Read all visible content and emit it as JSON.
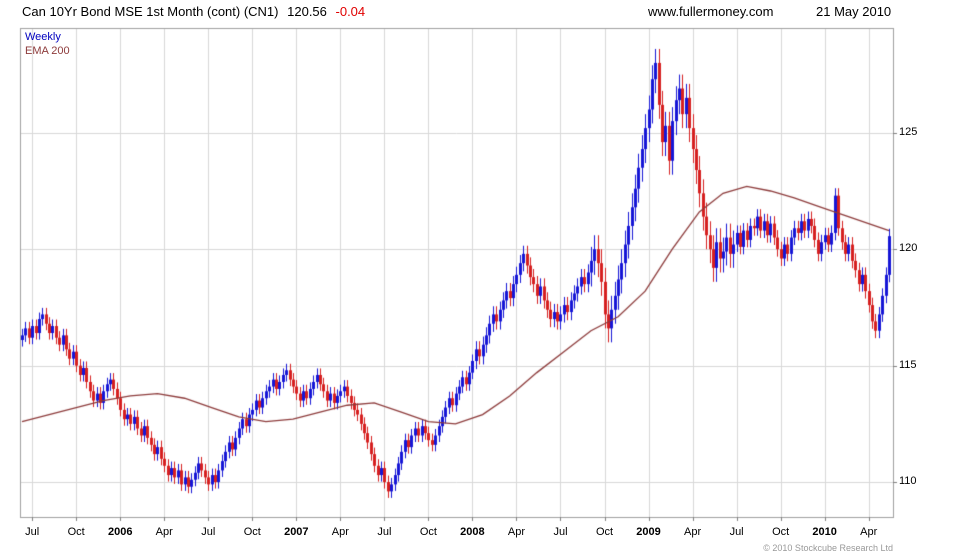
{
  "header": {
    "title": "Can 10Yr Bond MSE 1st Month (cont) (CN1)",
    "last_price": "120.56",
    "change": "-0.04",
    "website": "www.fullermoney.com",
    "date": "21 May 2010"
  },
  "legend": {
    "timeframe": "Weekly",
    "overlay": "EMA 200"
  },
  "footer": {
    "copyright": "© 2010 Stockcube Research Ltd"
  },
  "chart_data": {
    "type": "candlestick",
    "title": "Can 10Yr Bond MSE 1st Month (cont) (CN1)",
    "timeframe": "weekly",
    "legend_entries": [
      "Weekly",
      "EMA 200"
    ],
    "legend_position": "top-left",
    "grid": true,
    "ylim": [
      108.5,
      129.5
    ],
    "y_ticks": [
      110,
      115,
      120,
      125
    ],
    "x_ticks": [
      {
        "week": 3,
        "label": "Jul"
      },
      {
        "week": 16,
        "label": "Oct"
      },
      {
        "week": 29,
        "label": "2006"
      },
      {
        "week": 42,
        "label": "Apr"
      },
      {
        "week": 55,
        "label": "Jul"
      },
      {
        "week": 68,
        "label": "Oct"
      },
      {
        "week": 81,
        "label": "2007"
      },
      {
        "week": 94,
        "label": "Apr"
      },
      {
        "week": 107,
        "label": "Jul"
      },
      {
        "week": 120,
        "label": "Oct"
      },
      {
        "week": 133,
        "label": "2008"
      },
      {
        "week": 146,
        "label": "Apr"
      },
      {
        "week": 159,
        "label": "Jul"
      },
      {
        "week": 172,
        "label": "Oct"
      },
      {
        "week": 185,
        "label": "2009"
      },
      {
        "week": 198,
        "label": "Apr"
      },
      {
        "week": 211,
        "label": "Jul"
      },
      {
        "week": 224,
        "label": "Oct"
      },
      {
        "week": 237,
        "label": "2010"
      },
      {
        "week": 250,
        "label": "Apr"
      }
    ],
    "first_open": 116.1,
    "last_price": 120.56,
    "last_change": -0.04,
    "weekly_closes": [
      116.3,
      116.6,
      116.2,
      116.7,
      116.4,
      117.0,
      117.2,
      116.8,
      116.4,
      116.7,
      116.2,
      115.9,
      116.3,
      115.7,
      115.3,
      115.6,
      115.0,
      114.6,
      114.9,
      114.3,
      113.9,
      113.5,
      113.8,
      113.4,
      113.9,
      114.2,
      114.4,
      114.0,
      113.6,
      113.1,
      112.7,
      112.9,
      112.5,
      112.8,
      112.3,
      112.0,
      112.4,
      111.9,
      111.6,
      111.2,
      111.5,
      111.0,
      110.7,
      110.3,
      110.6,
      110.2,
      110.5,
      109.9,
      110.2,
      109.8,
      110.1,
      110.4,
      110.8,
      110.5,
      110.2,
      109.9,
      110.3,
      110.0,
      110.5,
      110.9,
      111.3,
      111.7,
      111.4,
      111.9,
      112.3,
      112.7,
      112.4,
      112.9,
      113.1,
      113.5,
      113.2,
      113.6,
      113.9,
      114.1,
      114.4,
      114.0,
      114.3,
      114.6,
      114.8,
      114.4,
      114.1,
      113.8,
      113.5,
      113.9,
      113.6,
      114.0,
      114.3,
      114.6,
      114.2,
      113.9,
      113.5,
      113.8,
      113.4,
      113.7,
      113.9,
      114.1,
      113.7,
      113.4,
      113.1,
      112.9,
      112.5,
      112.1,
      111.7,
      111.2,
      110.7,
      110.3,
      110.6,
      110.0,
      109.6,
      109.9,
      110.3,
      110.8,
      111.3,
      111.8,
      111.5,
      112.0,
      112.3,
      112.0,
      112.4,
      112.1,
      111.8,
      111.6,
      112.0,
      112.4,
      112.8,
      113.2,
      113.6,
      113.3,
      113.8,
      114.1,
      114.5,
      114.2,
      114.7,
      115.2,
      115.7,
      115.4,
      115.9,
      116.3,
      116.8,
      117.2,
      116.9,
      117.4,
      117.8,
      118.2,
      117.9,
      118.5,
      118.9,
      119.4,
      119.8,
      119.3,
      118.8,
      118.5,
      118.0,
      118.4,
      117.8,
      117.4,
      117.0,
      117.3,
      116.9,
      117.2,
      117.6,
      117.3,
      117.8,
      118.1,
      118.4,
      118.8,
      118.5,
      119.0,
      119.5,
      120.0,
      119.4,
      118.6,
      117.2,
      116.6,
      117.4,
      118.0,
      118.7,
      119.4,
      120.2,
      121.0,
      121.8,
      122.6,
      123.5,
      124.3,
      125.2,
      126.0,
      127.3,
      128.0,
      126.2,
      124.6,
      125.3,
      123.8,
      125.5,
      126.4,
      126.9,
      125.8,
      126.5,
      125.2,
      124.3,
      123.4,
      122.4,
      121.4,
      120.6,
      120.0,
      119.2,
      120.3,
      119.6,
      119.9,
      120.5,
      119.8,
      120.2,
      120.7,
      120.1,
      120.8,
      120.4,
      121.0,
      120.9,
      121.4,
      120.8,
      121.2,
      120.6,
      121.1,
      120.5,
      120.0,
      119.6,
      120.2,
      119.8,
      120.5,
      120.9,
      120.7,
      121.2,
      120.8,
      121.3,
      121.0,
      120.4,
      119.8,
      120.3,
      120.6,
      120.2,
      120.7,
      122.3,
      120.9,
      120.3,
      119.8,
      120.2,
      119.5,
      119.1,
      118.5,
      118.9,
      118.2,
      117.6,
      116.9,
      116.5,
      117.2,
      118.0,
      118.9,
      120.56
    ],
    "wick_margins": [
      {
        "from": 0,
        "to": 133,
        "margin": 0.28
      },
      {
        "from": 134,
        "to": 167,
        "margin": 0.35
      },
      {
        "from": 168,
        "to": 210,
        "margin": 0.6
      },
      {
        "from": 211,
        "to": 256,
        "margin": 0.32
      }
    ],
    "ema200": [
      [
        0,
        112.6
      ],
      [
        8,
        112.9
      ],
      [
        16,
        113.2
      ],
      [
        24,
        113.5
      ],
      [
        32,
        113.7
      ],
      [
        40,
        113.8
      ],
      [
        48,
        113.6
      ],
      [
        56,
        113.2
      ],
      [
        64,
        112.8
      ],
      [
        72,
        112.6
      ],
      [
        80,
        112.7
      ],
      [
        88,
        113.0
      ],
      [
        96,
        113.3
      ],
      [
        104,
        113.4
      ],
      [
        112,
        113.0
      ],
      [
        120,
        112.6
      ],
      [
        128,
        112.5
      ],
      [
        136,
        112.9
      ],
      [
        144,
        113.7
      ],
      [
        152,
        114.7
      ],
      [
        160,
        115.6
      ],
      [
        168,
        116.5
      ],
      [
        176,
        117.1
      ],
      [
        184,
        118.2
      ],
      [
        192,
        120.0
      ],
      [
        200,
        121.6
      ],
      [
        207,
        122.4
      ],
      [
        214,
        122.7
      ],
      [
        221,
        122.5
      ],
      [
        228,
        122.2
      ],
      [
        236,
        121.8
      ],
      [
        244,
        121.4
      ],
      [
        250,
        121.1
      ],
      [
        256,
        120.8
      ]
    ],
    "colors": {
      "up": "#1616d6",
      "down": "#d62020",
      "ema": "#8d3b3b",
      "grid": "#d8d8d8",
      "border": "#a0a0a0",
      "change": "#e00000",
      "timeframe_label": "#0000bf",
      "axis_text": "#000000",
      "copyright": "#999999"
    }
  }
}
